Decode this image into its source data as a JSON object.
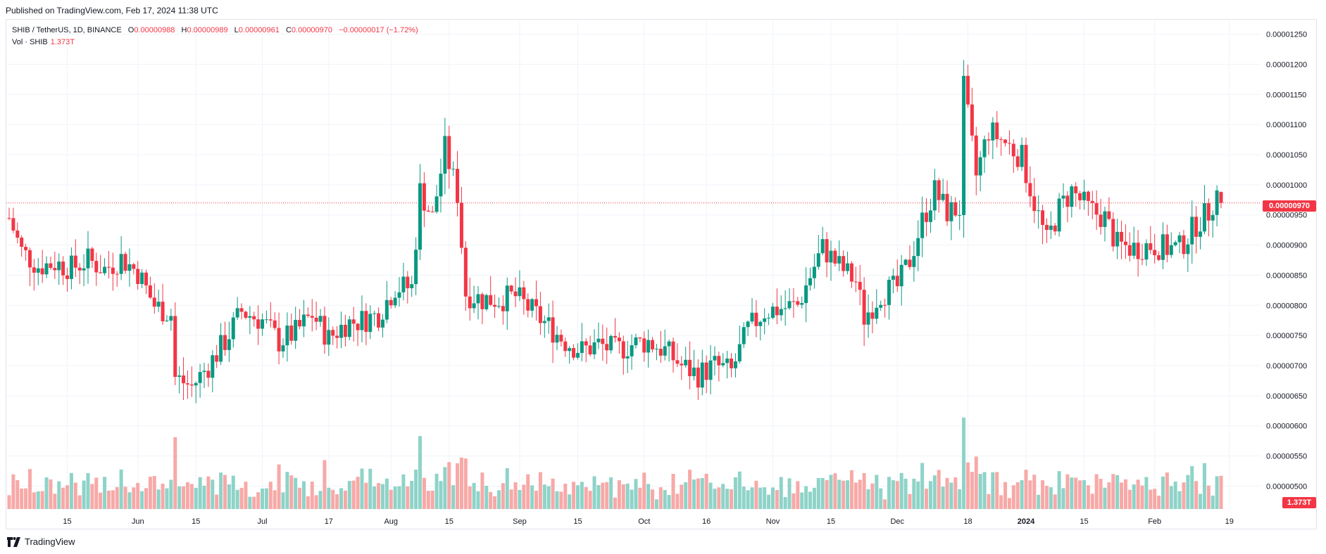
{
  "published": "Published on TradingView.com, Feb 17, 2024 11:38 UTC",
  "brand": "TradingView",
  "legend": {
    "symbol": "SHIB / TetherUS, 1D, BINANCE",
    "o_label": "O",
    "o": "0.00000988",
    "h_label": "H",
    "h": "0.00000989",
    "l_label": "L",
    "l": "0.00000961",
    "c_label": "C",
    "c": "0.00000970",
    "change": "−0.00000017 (−1.72%)",
    "vol_label": "Vol · SHIB",
    "vol": "1.373T"
  },
  "colors": {
    "up": "#089981",
    "down": "#f23645",
    "vol_up": "#8ed3c8",
    "vol_down": "#f7a9a7",
    "grid": "#f0f3fa"
  },
  "chart_data": {
    "type": "candlestick",
    "symbol": "SHIB / TetherUS",
    "interval": "1D",
    "exchange": "BINANCE",
    "ylim": [
      4.9e-06,
      1.26e-05
    ],
    "y_ticks": [
      "0.00001250",
      "0.00001200",
      "0.00001150",
      "0.00001100",
      "0.00001050",
      "0.00001000",
      "0.00000950",
      "0.00000900",
      "0.00000850",
      "0.00000800",
      "0.00000750",
      "0.00000700",
      "0.00000650",
      "0.00000600",
      "0.00000550",
      "0.00000500"
    ],
    "x_ticks": [
      {
        "label": "15",
        "date": "2023-05-15"
      },
      {
        "label": "Jun",
        "date": "2023-06-01"
      },
      {
        "label": "15",
        "date": "2023-06-15"
      },
      {
        "label": "Jul",
        "date": "2023-07-01"
      },
      {
        "label": "17",
        "date": "2023-07-17"
      },
      {
        "label": "Aug",
        "date": "2023-08-01"
      },
      {
        "label": "15",
        "date": "2023-08-15"
      },
      {
        "label": "Sep",
        "date": "2023-09-01"
      },
      {
        "label": "15",
        "date": "2023-09-15"
      },
      {
        "label": "Oct",
        "date": "2023-10-01"
      },
      {
        "label": "16",
        "date": "2023-10-16"
      },
      {
        "label": "Nov",
        "date": "2023-11-01"
      },
      {
        "label": "15",
        "date": "2023-11-15"
      },
      {
        "label": "Dec",
        "date": "2023-12-01"
      },
      {
        "label": "18",
        "date": "2023-12-18"
      },
      {
        "label": "2024",
        "date": "2024-01-01"
      },
      {
        "label": "15",
        "date": "2024-01-15"
      },
      {
        "label": "Feb",
        "date": "2024-02-01"
      },
      {
        "label": "19",
        "date": "2024-02-19"
      }
    ],
    "last_price": "0.00000970",
    "last_volume": "1.373T",
    "close_series": [
      {
        "date": "2023-05-01",
        "close": 9.45e-06
      },
      {
        "date": "2023-05-04",
        "close": 8.9e-06
      },
      {
        "date": "2023-05-08",
        "close": 8.65e-06
      },
      {
        "date": "2023-05-12",
        "close": 8.7e-06
      },
      {
        "date": "2023-05-16",
        "close": 8.62e-06
      },
      {
        "date": "2023-05-20",
        "close": 8.75e-06
      },
      {
        "date": "2023-05-24",
        "close": 8.6e-06
      },
      {
        "date": "2023-05-28",
        "close": 8.78e-06
      },
      {
        "date": "2023-06-01",
        "close": 8.55e-06
      },
      {
        "date": "2023-06-05",
        "close": 8e-06
      },
      {
        "date": "2023-06-09",
        "close": 7.85e-06
      },
      {
        "date": "2023-06-10",
        "close": 6.8e-06
      },
      {
        "date": "2023-06-14",
        "close": 6.65e-06
      },
      {
        "date": "2023-06-18",
        "close": 7e-06
      },
      {
        "date": "2023-06-22",
        "close": 7.4e-06
      },
      {
        "date": "2023-06-26",
        "close": 7.9e-06
      },
      {
        "date": "2023-07-01",
        "close": 7.75e-06
      },
      {
        "date": "2023-07-05",
        "close": 7.4e-06
      },
      {
        "date": "2023-07-09",
        "close": 7.55e-06
      },
      {
        "date": "2023-07-13",
        "close": 7.85e-06
      },
      {
        "date": "2023-07-17",
        "close": 7.45e-06
      },
      {
        "date": "2023-07-21",
        "close": 7.7e-06
      },
      {
        "date": "2023-07-25",
        "close": 7.75e-06
      },
      {
        "date": "2023-07-29",
        "close": 7.85e-06
      },
      {
        "date": "2023-08-02",
        "close": 8.3e-06
      },
      {
        "date": "2023-08-06",
        "close": 8.3e-06
      },
      {
        "date": "2023-08-08",
        "close": 9.9e-06
      },
      {
        "date": "2023-08-11",
        "close": 9.45e-06
      },
      {
        "date": "2023-08-14",
        "close": 1.06e-05
      },
      {
        "date": "2023-08-17",
        "close": 9.85e-06
      },
      {
        "date": "2023-08-19",
        "close": 8.2e-06
      },
      {
        "date": "2023-08-23",
        "close": 8.1e-06
      },
      {
        "date": "2023-08-27",
        "close": 8.1e-06
      },
      {
        "date": "2023-08-31",
        "close": 8.15e-06
      },
      {
        "date": "2023-09-04",
        "close": 7.9e-06
      },
      {
        "date": "2023-09-08",
        "close": 7.65e-06
      },
      {
        "date": "2023-09-12",
        "close": 7.4e-06
      },
      {
        "date": "2023-09-16",
        "close": 7.25e-06
      },
      {
        "date": "2023-09-20",
        "close": 7.35e-06
      },
      {
        "date": "2023-09-24",
        "close": 7.25e-06
      },
      {
        "date": "2023-09-28",
        "close": 7.35e-06
      },
      {
        "date": "2023-10-02",
        "close": 7.4e-06
      },
      {
        "date": "2023-10-06",
        "close": 7.25e-06
      },
      {
        "date": "2023-10-10",
        "close": 7e-06
      },
      {
        "date": "2023-10-14",
        "close": 6.85e-06
      },
      {
        "date": "2023-10-18",
        "close": 7e-06
      },
      {
        "date": "2023-10-22",
        "close": 6.9e-06
      },
      {
        "date": "2023-10-26",
        "close": 7.6e-06
      },
      {
        "date": "2023-10-30",
        "close": 7.9e-06
      },
      {
        "date": "2023-11-03",
        "close": 7.95e-06
      },
      {
        "date": "2023-11-07",
        "close": 8e-06
      },
      {
        "date": "2023-11-11",
        "close": 8.65e-06
      },
      {
        "date": "2023-11-13",
        "close": 8.95e-06
      },
      {
        "date": "2023-11-17",
        "close": 8.65e-06
      },
      {
        "date": "2023-11-21",
        "close": 8.4e-06
      },
      {
        "date": "2023-11-23",
        "close": 7.8e-06
      },
      {
        "date": "2023-11-27",
        "close": 8.2e-06
      },
      {
        "date": "2023-12-01",
        "close": 8.3e-06
      },
      {
        "date": "2023-12-04",
        "close": 8.75e-06
      },
      {
        "date": "2023-12-07",
        "close": 9.4e-06
      },
      {
        "date": "2023-12-10",
        "close": 9.9e-06
      },
      {
        "date": "2023-12-13",
        "close": 9.55e-06
      },
      {
        "date": "2023-12-16",
        "close": 9.6e-06
      },
      {
        "date": "2023-12-17",
        "close": 1.16e-05
      },
      {
        "date": "2023-12-20",
        "close": 1.015e-05
      },
      {
        "date": "2023-12-23",
        "close": 1.09e-05
      },
      {
        "date": "2023-12-27",
        "close": 1.07e-05
      },
      {
        "date": "2023-12-31",
        "close": 1.045e-05
      },
      {
        "date": "2024-01-03",
        "close": 9.7e-06
      },
      {
        "date": "2024-01-06",
        "close": 9.05e-06
      },
      {
        "date": "2024-01-09",
        "close": 9.6e-06
      },
      {
        "date": "2024-01-12",
        "close": 9.9e-06
      },
      {
        "date": "2024-01-16",
        "close": 9.6e-06
      },
      {
        "date": "2024-01-20",
        "close": 9.45e-06
      },
      {
        "date": "2024-01-23",
        "close": 9e-06
      },
      {
        "date": "2024-01-27",
        "close": 8.95e-06
      },
      {
        "date": "2024-01-31",
        "close": 9e-06
      },
      {
        "date": "2024-02-04",
        "close": 8.95e-06
      },
      {
        "date": "2024-02-07",
        "close": 8.95e-06
      },
      {
        "date": "2024-02-11",
        "close": 9.35e-06
      },
      {
        "date": "2024-02-14",
        "close": 9.55e-06
      },
      {
        "date": "2024-02-16",
        "close": 9.87e-06
      },
      {
        "date": "2024-02-17",
        "close": 9.7e-06
      }
    ]
  }
}
